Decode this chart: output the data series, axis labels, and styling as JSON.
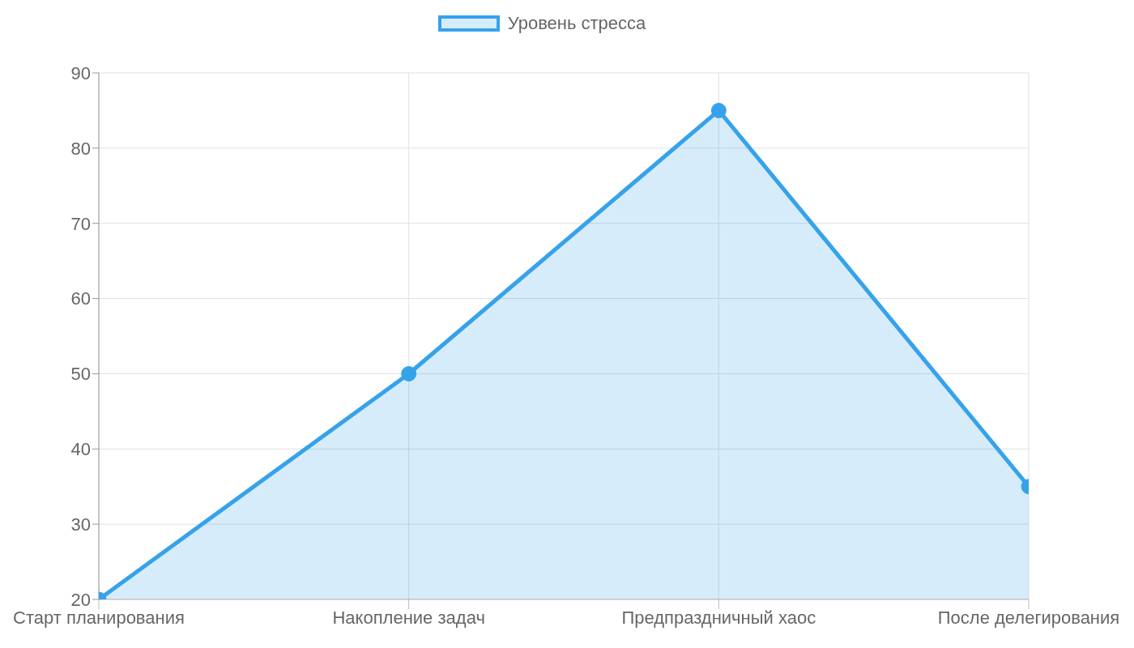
{
  "chart_data": {
    "type": "area",
    "categories": [
      "Старт планирования",
      "Накопление задач",
      "Предпраздничный хаос",
      "После делегирования"
    ],
    "series": [
      {
        "name": "Уровень стресса",
        "color": "#36a2eb",
        "values": [
          20,
          50,
          85,
          35
        ]
      }
    ],
    "ylim": [
      20,
      90
    ],
    "yticks": [
      20,
      30,
      40,
      50,
      60,
      70,
      80,
      90
    ],
    "grid": true,
    "legend": "top",
    "marker": "circle"
  }
}
